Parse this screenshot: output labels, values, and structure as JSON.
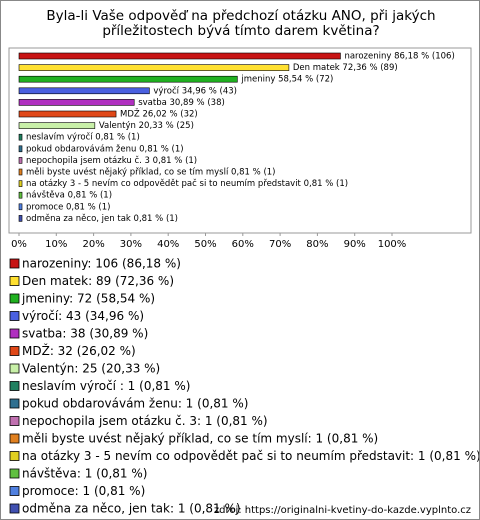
{
  "chart_data": {
    "type": "bar",
    "orientation": "horizontal",
    "title": "Byla-li Vaše odpověď na předchozí otázku ANO, při jakých příležitostech bývá tímto darem květina?",
    "categories": [
      "narozeniny",
      "Den matek",
      "jmeniny",
      "výročí",
      "svatba",
      "MDŽ",
      "Valentýn",
      "neslavím výročí",
      "pokud obdarovávám ženu",
      "nepochopila jsem otázku č. 3",
      "měli byste uvést nějaký příklad, co se tím myslí",
      "na otázky 3 - 5 nevím co odpovědět pač si to neumím představit",
      "návštěva",
      "promoce",
      "odměna za něco, jen tak"
    ],
    "values": [
      86.18,
      72.36,
      58.54,
      34.96,
      30.89,
      26.02,
      20.33,
      0.81,
      0.81,
      0.81,
      0.81,
      0.81,
      0.81,
      0.81,
      0.81
    ],
    "value_labels": [
      "narozeniny 86,18 % (106)",
      "Den matek 72,36 % (89)",
      "jmeniny 58,54 % (72)",
      "výročí 34,96 % (43)",
      "svatba 30,89 % (38)",
      "MDŽ 26,02 % (32)",
      "Valentýn 20,33 % (25)",
      "neslavím výročí  0,81 % (1)",
      "pokud obdarovávám ženu 0,81 % (1)",
      "nepochopila jsem otázku č. 3 0,81 % (1)",
      "měli byste uvést nějaký příklad, co se tím myslí 0,81 % (1)",
      "na otázky 3 - 5 nevím co odpovědět pač si to neumím představit 0,81 % (1)",
      "návštěva 0,81 % (1)",
      "promoce 0,81 % (1)",
      "odměna za něco, jen tak 0,81 % (1)"
    ],
    "legend_labels": [
      "narozeniny: 106 (86,18 %)",
      "Den matek: 89 (72,36 %)",
      "jmeniny: 72 (58,54 %)",
      "výročí: 43 (34,96 %)",
      "svatba: 38 (30,89 %)",
      "MDŽ: 32 (26,02 %)",
      "Valentýn: 25 (20,33 %)",
      "neslavím výročí : 1 (0,81 %)",
      "pokud obdarovávám ženu: 1 (0,81 %)",
      "nepochopila jsem otázku č. 3: 1 (0,81 %)",
      "měli byste uvést nějaký příklad, co se tím myslí: 1 (0,81 %)",
      "na otázky 3 - 5 nevím co odpovědět pač si to neumím představit: 1 (0,81 %)",
      "návštěva: 1 (0,81 %)",
      "promoce: 1 (0,81 %)",
      "odměna za něco, jen tak: 1 (0,81 %)"
    ],
    "colors": [
      "#c81414",
      "#ffe030",
      "#20b020",
      "#4a60e0",
      "#b030c0",
      "#e04818",
      "#c8f0a8",
      "#208060",
      "#307090",
      "#c070b0",
      "#e08020",
      "#e0d020",
      "#60c040",
      "#5080e0",
      "#4050b0"
    ],
    "xlim": [
      0,
      100
    ],
    "xticks": [
      {
        "value": 0,
        "label": "0%"
      },
      {
        "value": 10,
        "label": "10%"
      },
      {
        "value": 20,
        "label": "20%"
      },
      {
        "value": 30,
        "label": "30%"
      },
      {
        "value": 40,
        "label": "40%"
      },
      {
        "value": 50,
        "label": "50%"
      },
      {
        "value": 60,
        "label": "60%"
      },
      {
        "value": 70,
        "label": "70%"
      },
      {
        "value": 80,
        "label": "80%"
      },
      {
        "value": 90,
        "label": "90%"
      },
      {
        "value": 100,
        "label": "100%"
      }
    ],
    "source": "zdroj: https://originalni-kvetiny-do-kazde.vyplnto.cz"
  }
}
